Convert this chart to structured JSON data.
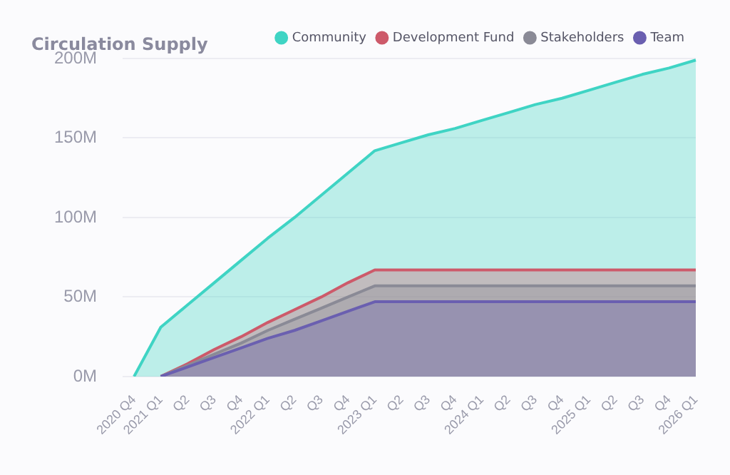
{
  "chart_data": {
    "type": "area",
    "title": "Circulation Supply",
    "categories": [
      "2020 Q4",
      "2021 Q1",
      "Q2",
      "Q3",
      "Q4",
      "2022 Q1",
      "Q2",
      "Q3",
      "Q4",
      "2023 Q1",
      "Q2",
      "Q3",
      "Q4",
      "2024 Q1",
      "Q2",
      "Q3",
      "Q4",
      "2025 Q1",
      "Q2",
      "Q3",
      "Q4",
      "2026 Q1"
    ],
    "series": [
      {
        "name": "Community",
        "color": "#3fd4c4",
        "values": [
          0,
          31,
          45,
          59,
          73,
          87,
          100,
          114,
          128,
          142,
          147,
          152,
          156,
          161,
          166,
          171,
          175,
          180,
          185,
          190,
          194,
          199
        ]
      },
      {
        "name": "Development Fund",
        "color": "#cd5a6a",
        "values": [
          null,
          0,
          8,
          17,
          25,
          34,
          42,
          50,
          59,
          67,
          67,
          67,
          67,
          67,
          67,
          67,
          67,
          67,
          67,
          67,
          67,
          67
        ]
      },
      {
        "name": "Stakeholders",
        "color": "#8a8a96",
        "values": [
          null,
          0,
          7,
          14,
          21,
          29,
          36,
          43,
          50,
          57,
          57,
          57,
          57,
          57,
          57,
          57,
          57,
          57,
          57,
          57,
          57,
          57
        ]
      },
      {
        "name": "Team",
        "color": "#6a5fb0",
        "values": [
          null,
          0,
          6,
          12,
          18,
          24,
          29,
          35,
          41,
          47,
          47,
          47,
          47,
          47,
          47,
          47,
          47,
          47,
          47,
          47,
          47,
          47
        ]
      }
    ],
    "ylim": [
      0,
      200
    ],
    "yticks": [
      {
        "value": 0,
        "label": "0M"
      },
      {
        "value": 50,
        "label": "50M"
      },
      {
        "value": 100,
        "label": "100M"
      },
      {
        "value": 150,
        "label": "150M"
      },
      {
        "value": 200,
        "label": "200M"
      }
    ],
    "grid": "y",
    "legend": "top right",
    "marker": "none"
  }
}
